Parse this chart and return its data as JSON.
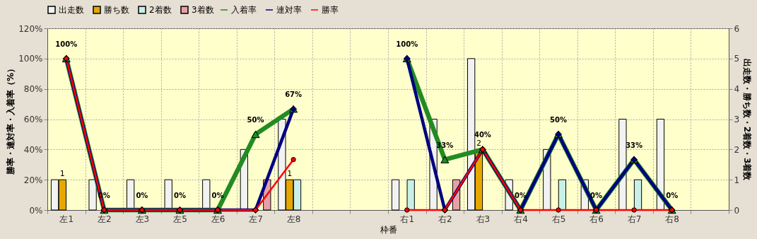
{
  "chart_data": {
    "type": "bar",
    "xlabel": "枠番",
    "ylabel": "勝率・連対率・入着率（%）",
    "y2label": "出走数・勝ち数・2着数・3着数",
    "categories": [
      "左1",
      "左2",
      "左3",
      "左5",
      "左6",
      "左7",
      "左8",
      null,
      null,
      "右1",
      "右2",
      "右3",
      "右4",
      "右5",
      "右6",
      "右7",
      "右8",
      null
    ],
    "series": [
      {
        "name": "出走数",
        "axis": "y2",
        "color": "#f2f2f2",
        "values": [
          1,
          1,
          1,
          1,
          1,
          2,
          3,
          null,
          null,
          1,
          3,
          5,
          1,
          2,
          1,
          3,
          3,
          null
        ]
      },
      {
        "name": "勝ち数",
        "axis": "y2",
        "color": "#e6a800",
        "values": [
          1,
          null,
          null,
          null,
          null,
          null,
          1,
          null,
          null,
          null,
          null,
          2,
          null,
          null,
          null,
          null,
          null,
          null
        ],
        "value_labels": [
          "1",
          null,
          null,
          null,
          null,
          null,
          "1",
          null,
          null,
          null,
          null,
          "2",
          null,
          null,
          null,
          null,
          null,
          null
        ]
      },
      {
        "name": "2着数",
        "axis": "y2",
        "color": "#c8f0e6",
        "values": [
          null,
          null,
          null,
          null,
          null,
          null,
          1,
          null,
          null,
          1,
          null,
          null,
          null,
          1,
          null,
          1,
          null,
          null
        ]
      },
      {
        "name": "3着数",
        "axis": "y2",
        "color": "#e8a0a8",
        "values": [
          null,
          null,
          null,
          null,
          null,
          1,
          null,
          null,
          null,
          null,
          1,
          null,
          null,
          null,
          null,
          null,
          null,
          null
        ]
      },
      {
        "name": "入着率",
        "type": "line",
        "color": "#228b22",
        "marker": "triangle",
        "values": [
          100,
          0,
          0,
          0,
          0,
          50,
          66.7,
          null,
          null,
          100,
          33.3,
          40,
          0,
          50,
          0,
          33.3,
          0,
          null
        ],
        "value_labels": [
          "100%",
          "0%",
          "0%",
          "0%",
          "0%",
          "50%",
          "67%",
          null,
          null,
          "100%",
          "33%",
          "40%",
          "0%",
          "50%",
          "0%",
          "33%",
          "0%",
          null
        ]
      },
      {
        "name": "連対率",
        "type": "line",
        "color": "#000080",
        "marker": "diamond",
        "values": [
          100,
          0,
          0,
          0,
          0,
          0,
          66.7,
          null,
          null,
          100,
          0,
          40,
          0,
          50,
          0,
          33.3,
          0,
          null
        ]
      },
      {
        "name": "勝率",
        "type": "line",
        "color": "#ff0000",
        "marker": "circle",
        "values": [
          100,
          0,
          0,
          0,
          0,
          0,
          33.3,
          null,
          null,
          0,
          0,
          40,
          0,
          0,
          0,
          0,
          0,
          null
        ]
      }
    ],
    "ylim": [
      0,
      120
    ],
    "yticks": [
      {
        "value": 0,
        "label": "0%"
      },
      {
        "value": 20,
        "label": "20%"
      },
      {
        "value": 40,
        "label": "40%"
      },
      {
        "value": 60,
        "label": "60%"
      },
      {
        "value": 80,
        "label": "80%"
      },
      {
        "value": 100,
        "label": "100%"
      },
      {
        "value": 120,
        "label": "120%"
      }
    ],
    "y2lim": [
      0,
      6
    ],
    "y2ticks": [
      0,
      1,
      2,
      3,
      4,
      5,
      6
    ],
    "grid": true,
    "legend": "top"
  }
}
